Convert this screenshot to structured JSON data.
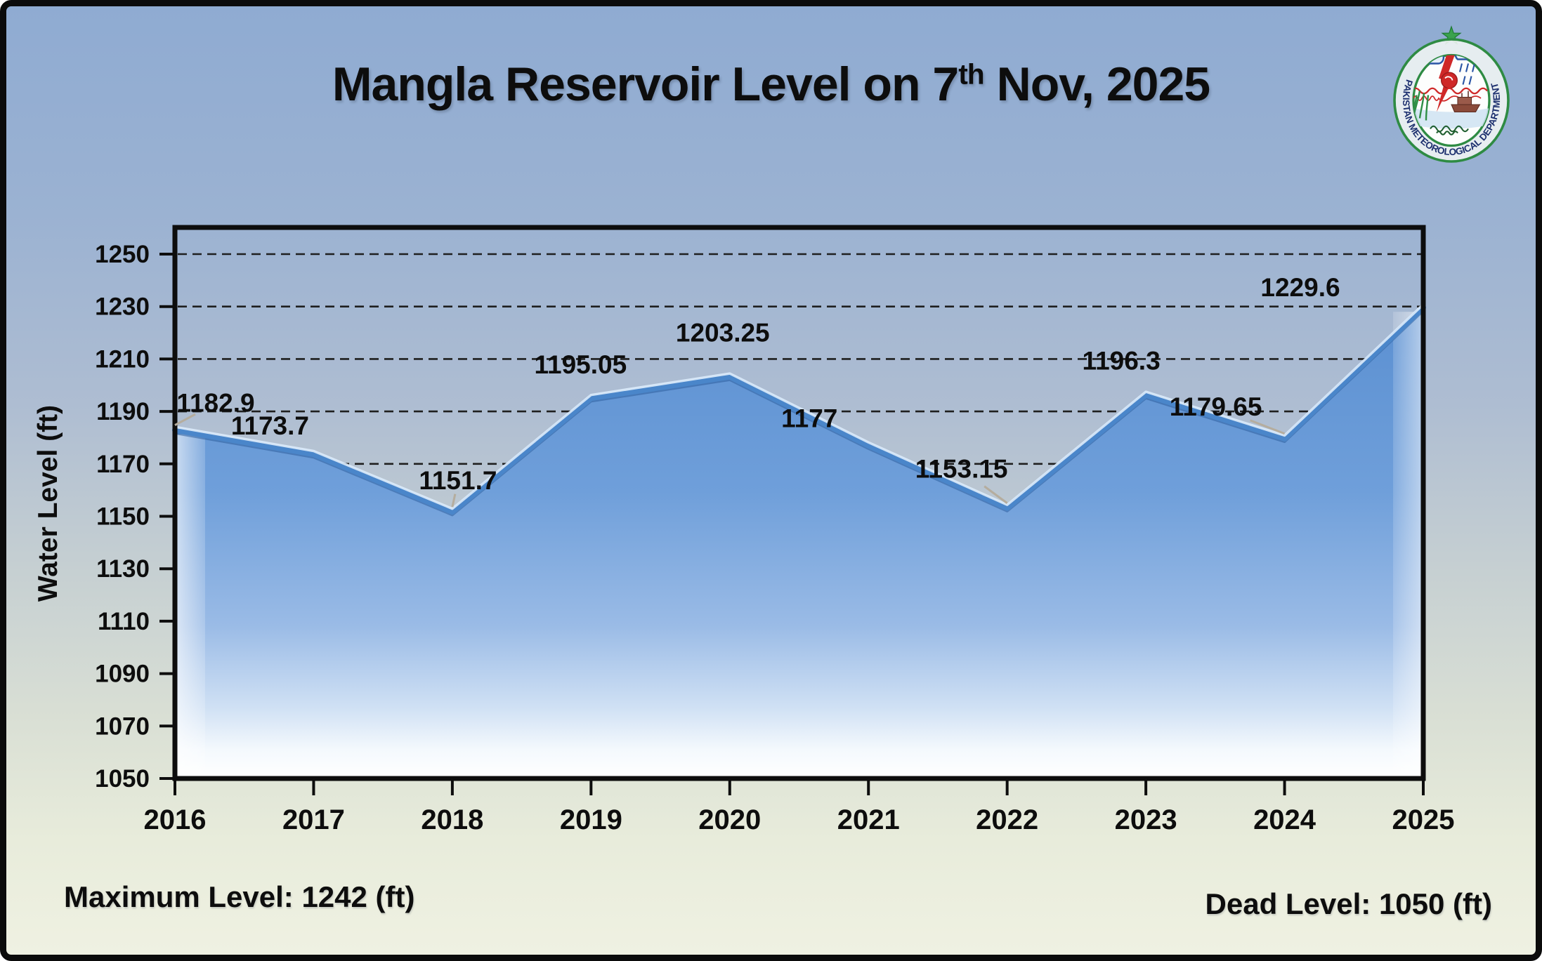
{
  "title": {
    "prefix": "Mangla Reservoir Level on 7",
    "sup": "th",
    "suffix": " Nov, 2025"
  },
  "logo": {
    "org": "PAKISTAN METEOROLOGICAL DEPARTMENT"
  },
  "chart_data": {
    "type": "area",
    "title": "Mangla Reservoir Level on 7th Nov, 2025",
    "categories": [
      "2016",
      "2017",
      "2018",
      "2019",
      "2020",
      "2021",
      "2022",
      "2023",
      "2024",
      "2025"
    ],
    "values": [
      1182.9,
      1173.7,
      1151.7,
      1195.05,
      1203.25,
      1177,
      1153.15,
      1196.3,
      1179.65,
      1229.6
    ],
    "xlabel": "",
    "ylabel": "Water Level (ft)",
    "ylim": [
      1050,
      1250
    ],
    "ytick_step": 20,
    "grid": "horizontal-dashed",
    "legend_position": "none",
    "max_level_ft": 1242,
    "dead_level_ft": 1050,
    "colors": {
      "line": "#4a86ca",
      "line_highlight": "#dcebfb",
      "line_shadow": "#2d5f9f",
      "area_top": "#5a8fd1",
      "area_bottom": "#ffffff",
      "gridline": "#1f1f1f",
      "axis": "#0d0d0d",
      "text": "#0d0d0d",
      "leader": "#b5ad9e"
    }
  },
  "footer": {
    "max_label": "Maximum Level: 1242 (ft)",
    "dead_label": "Dead Level: 1050 (ft)"
  }
}
